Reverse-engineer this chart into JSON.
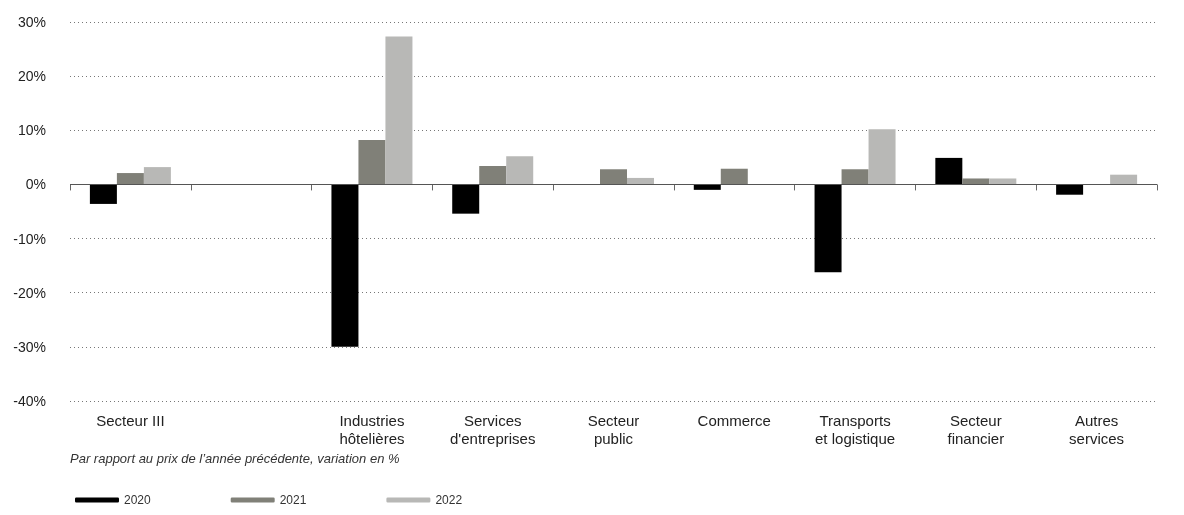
{
  "chart_data": {
    "type": "bar",
    "categories": [
      "Secteur III",
      null,
      "Industries\nhôtelières",
      "Services\nd'entreprises",
      "Secteur\npublic",
      "Commerce",
      "Transports\net logistique",
      "Secteur\nfinancier",
      "Autres\nservices"
    ],
    "series": [
      {
        "name": "2020",
        "color": "#000000",
        "values": [
          -3.6,
          null,
          -30,
          -5.4,
          null,
          -1,
          -16.2,
          4.9,
          -1.9
        ]
      },
      {
        "name": "2021",
        "color": "#808078",
        "values": [
          2.1,
          null,
          8.2,
          3.4,
          2.8,
          2.9,
          2.8,
          1.1,
          null
        ]
      },
      {
        "name": "2022",
        "color": "#b8b8b6",
        "values": [
          3.2,
          null,
          27.3,
          5.2,
          1.2,
          null,
          10.2,
          1.1,
          1.8
        ]
      }
    ],
    "ylim": [
      -40,
      30
    ],
    "yticks": [
      {
        "value": -40,
        "label": "-40%"
      },
      {
        "value": -30,
        "label": "-30%"
      },
      {
        "value": -20,
        "label": "-20%"
      },
      {
        "value": -10,
        "label": "-10%"
      },
      {
        "value": 0,
        "label": "0%"
      },
      {
        "value": 10,
        "label": "10%"
      },
      {
        "value": 20,
        "label": "20%"
      },
      {
        "value": 30,
        "label": "30%"
      }
    ],
    "ref_lines": [
      {
        "axis": "y",
        "value": 0,
        "color": "#555555"
      }
    ],
    "grid": "y",
    "legend": "bottom left",
    "annotations": [
      "Par rapport au prix de l’année précédente, variation en %"
    ]
  }
}
